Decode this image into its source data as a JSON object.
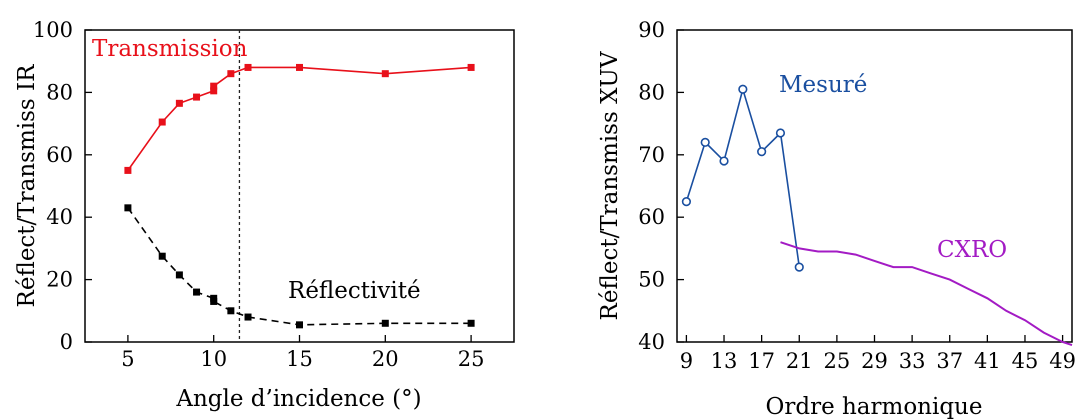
{
  "chart_data": [
    {
      "type": "line",
      "xlabel": "Angle d’incidence (°)",
      "ylabel": "Réflect/Transmiss IR",
      "xlim": [
        2.5,
        27.5
      ],
      "ylim": [
        0,
        100
      ],
      "xticks": [
        5,
        10,
        15,
        20,
        25
      ],
      "yticks": [
        0,
        20,
        40,
        60,
        80,
        100
      ],
      "grid": false,
      "vline": {
        "x": 11.5,
        "style": "dotted"
      },
      "series": [
        {
          "name": "Transmission",
          "color": "#e8101a",
          "line_style": "solid",
          "marker": "square",
          "x": [
            5,
            7,
            8,
            9,
            10,
            10,
            11,
            12,
            15,
            20,
            25
          ],
          "y": [
            55,
            70.5,
            76.5,
            78.5,
            80.5,
            82,
            86,
            88,
            88,
            86,
            88
          ]
        },
        {
          "name": "Réflectivité",
          "color": "#000000",
          "line_style": "dashed",
          "marker": "square",
          "x": [
            5,
            7,
            8,
            9,
            10,
            10,
            11,
            12,
            15,
            20,
            25
          ],
          "y": [
            43,
            27.5,
            21.5,
            16,
            14,
            13,
            10,
            8,
            5.5,
            6,
            6
          ]
        }
      ]
    },
    {
      "type": "line",
      "xlabel": "Ordre harmonique",
      "ylabel": "Réflect/Transmiss XUV",
      "xlim": [
        8,
        50
      ],
      "ylim": [
        40,
        90
      ],
      "xticks": [
        9,
        13,
        17,
        21,
        25,
        29,
        33,
        37,
        41,
        45,
        49
      ],
      "yticks": [
        40,
        50,
        60,
        70,
        80,
        90
      ],
      "grid": false,
      "series": [
        {
          "name": "Mesuré",
          "color": "#1a4fa0",
          "line_style": "solid",
          "marker": "circle-open",
          "x": [
            9,
            11,
            13,
            15,
            17,
            19,
            21
          ],
          "y": [
            62.5,
            72,
            69,
            80.5,
            70.5,
            73.5,
            52
          ]
        },
        {
          "name": "CXRO",
          "color": "#a31bc4",
          "line_style": "solid",
          "marker": "none",
          "x": [
            19,
            21,
            23,
            25,
            27,
            29,
            31,
            33,
            35,
            37,
            39,
            41,
            43,
            45,
            47,
            49,
            50
          ],
          "y": [
            56,
            55,
            54.5,
            54.5,
            54,
            53,
            52,
            52,
            51,
            50,
            48.5,
            47,
            45,
            43.5,
            41.5,
            40,
            39.5
          ]
        }
      ]
    }
  ]
}
